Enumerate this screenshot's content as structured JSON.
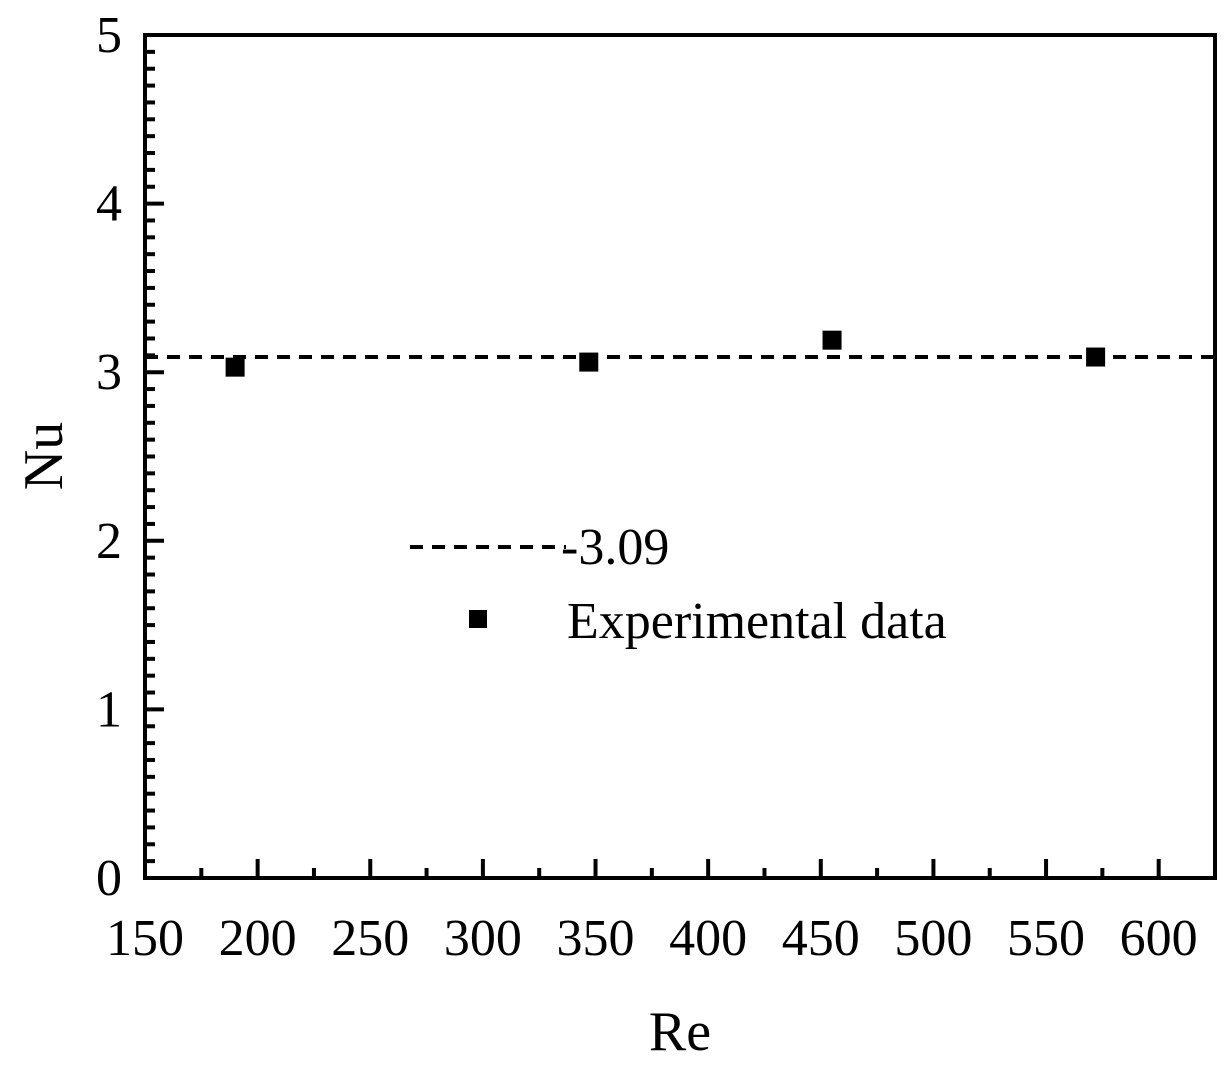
{
  "chart_data": {
    "type": "scatter",
    "title": "",
    "xlabel": "Re",
    "ylabel": "Nu",
    "xlim": [
      150,
      625
    ],
    "ylim": [
      0,
      5
    ],
    "x_ticks": [
      150,
      200,
      250,
      300,
      350,
      400,
      450,
      500,
      550,
      600
    ],
    "x_tick_labels": [
      "150",
      "200",
      "250",
      "300",
      "350",
      "400",
      "450",
      "500",
      "550",
      "600"
    ],
    "y_ticks": [
      0,
      1,
      2,
      3,
      4,
      5
    ],
    "y_tick_labels": [
      "0",
      "1",
      "2",
      "3",
      "4",
      "5"
    ],
    "grid": false,
    "legend_position": "center",
    "series": [
      {
        "name": "Experimental data",
        "kind": "points",
        "marker": "square",
        "color": "#000000",
        "x": [
          190,
          347,
          455,
          572
        ],
        "y": [
          3.03,
          3.06,
          3.19,
          3.09
        ]
      },
      {
        "name": "-3.09",
        "kind": "line",
        "style": "dashed",
        "color": "#000000",
        "y_value": 3.09
      }
    ]
  }
}
